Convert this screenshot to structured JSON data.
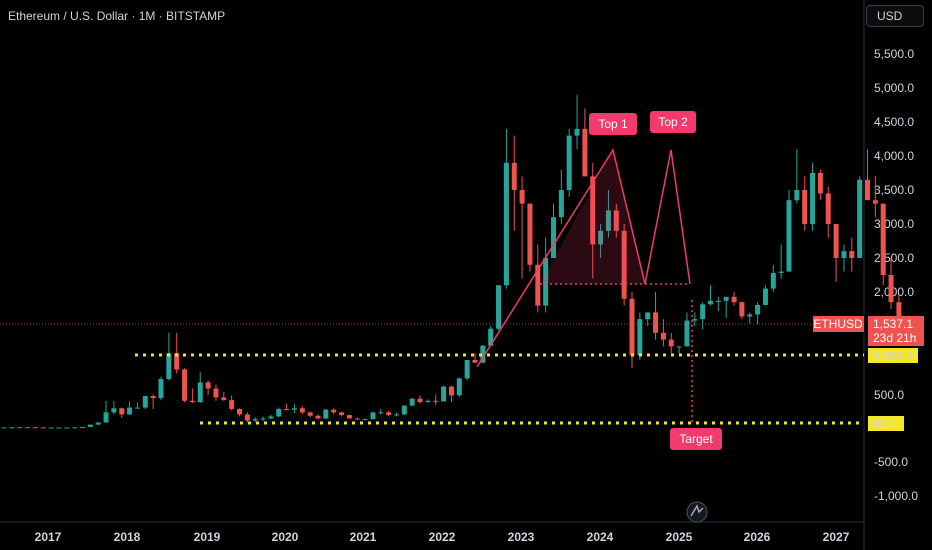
{
  "header": {
    "title": "Ethereum / U.S. Dollar · 1M · BITSTAMP",
    "currency_button": "USD"
  },
  "chart_data": {
    "type": "candlestick",
    "symbol": "ETHUSD",
    "timeframe": "1M",
    "exchange": "BITSTAMP",
    "y_axis_ticks": [
      "5,500.0",
      "5,000.0",
      "4,500.0",
      "4,000.0",
      "3,500.0",
      "3,000.0",
      "2,500.0",
      "2,000.0",
      "500.0",
      "-500.0",
      "-1,000.0"
    ],
    "x_axis_ticks": [
      "2017",
      "2018",
      "2019",
      "2020",
      "2021",
      "2022",
      "2023",
      "2024",
      "2025",
      "2026",
      "2027"
    ],
    "price_labels": {
      "last_symbol": "ETHUSD",
      "last_price": "1,537.1",
      "countdown": "23d 21h",
      "support_level": "1,066.0",
      "target_level": "83.1"
    },
    "annotations": {
      "top1": "Top 1",
      "top2": "Top 2",
      "target": "Target"
    },
    "colors": {
      "up": "#26a69a",
      "down": "#ef5350",
      "pattern": "#f23a6c",
      "level_line": "#f5e62a",
      "background": "#000000"
    }
  }
}
